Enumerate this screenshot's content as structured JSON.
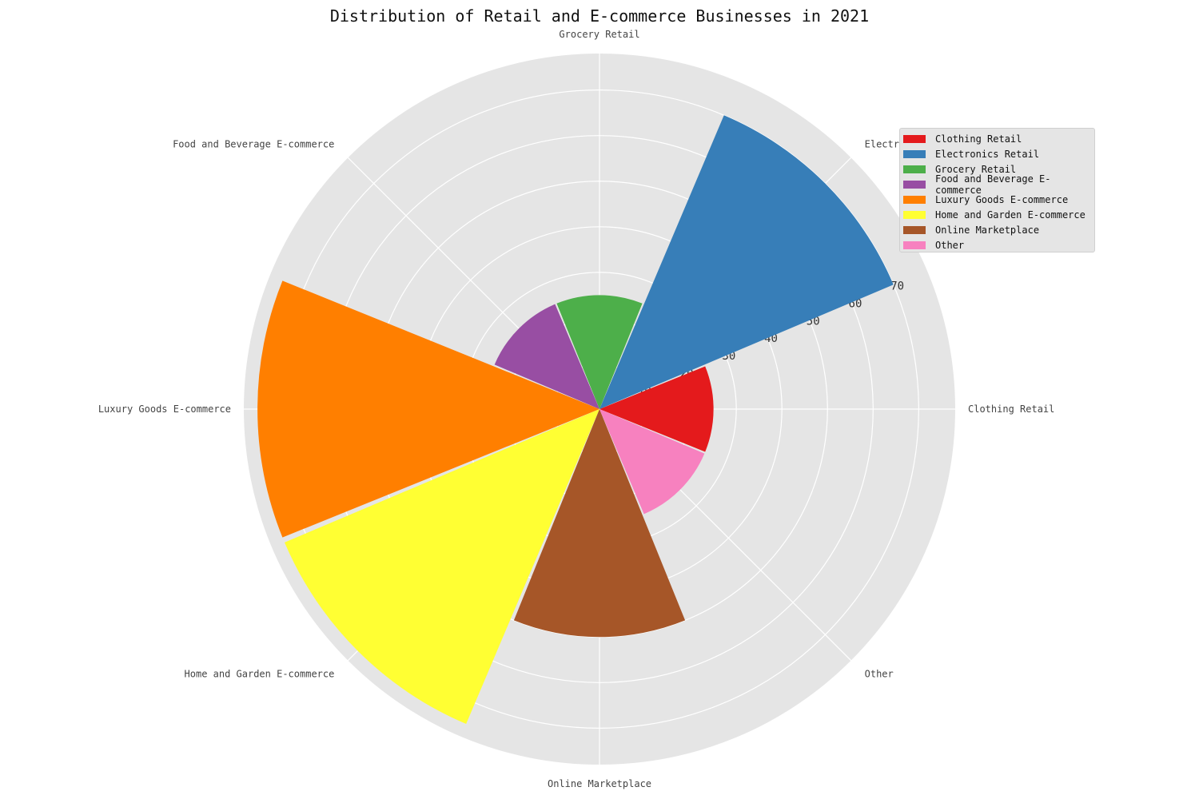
{
  "chart_data": {
    "type": "bar",
    "subtype": "polar-area",
    "title": "Distribution of Retail and E-commerce Businesses in 2021",
    "categories": [
      "Clothing Retail",
      "Electronics Retail",
      "Grocery Retail",
      "Food and Beverage E-commerce",
      "Luxury Goods E-commerce",
      "Home and Garden E-commerce",
      "Online Marketplace",
      "Other"
    ],
    "values": [
      25,
      70,
      25,
      25,
      75,
      75,
      50,
      25
    ],
    "colors": [
      "#e41a1c",
      "#377eb8",
      "#4daf4a",
      "#984ea3",
      "#ff7f00",
      "#ffff33",
      "#a65628",
      "#f781bf"
    ],
    "rlim": [
      0,
      78
    ],
    "radial_ticks": [
      10,
      20,
      30,
      40,
      50,
      60,
      70
    ],
    "grid": true,
    "legend_position": "top-right",
    "background": "#e5e5e5"
  }
}
